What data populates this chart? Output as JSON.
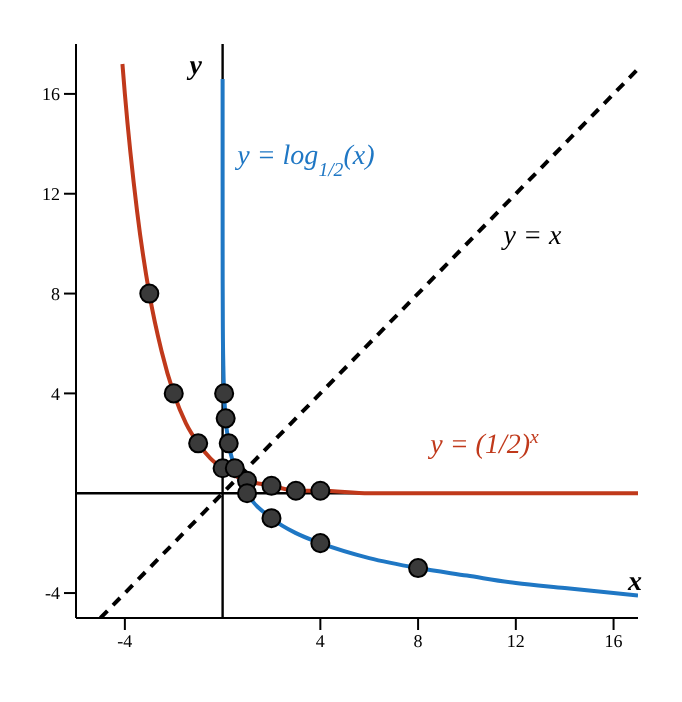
{
  "chart_data": {
    "type": "line",
    "xlabel": "x",
    "ylabel": "y",
    "xlim": [
      -6,
      17
    ],
    "ylim": [
      -5,
      18
    ],
    "xticks": [
      -4,
      4,
      8,
      12,
      16
    ],
    "yticks": [
      -4,
      4,
      8,
      12,
      16
    ],
    "grid": false,
    "legend": false,
    "marker": "none",
    "series": [
      {
        "name": "y = log$_{1/2}$(x)",
        "color": "#1f77c4",
        "line_style": "solid",
        "x": [
          1e-05,
          0.0002,
          0.001,
          0.003,
          0.01,
          0.03,
          0.0625,
          0.125,
          0.25,
          0.5,
          1,
          2,
          3,
          4,
          6,
          8,
          10,
          12,
          14,
          16,
          17
        ],
        "values": [
          16.6,
          12.3,
          10,
          8.4,
          6.6,
          5.1,
          4,
          3,
          2,
          1,
          0,
          -1,
          -1.6,
          -2,
          -2.6,
          -3,
          -3.3,
          -3.6,
          -3.8,
          -4,
          -4.1
        ]
      },
      {
        "name": "y = x",
        "color": "#000000",
        "line_style": "dashed",
        "x": [
          -5,
          17
        ],
        "values": [
          -5,
          17
        ]
      },
      {
        "name": "y = (1/2)$^{x}$",
        "color": "#c0391b",
        "line_style": "solid",
        "x": [
          -4.1,
          -4,
          -3.5,
          -3,
          -2.5,
          -2,
          -1.5,
          -1,
          -0.5,
          0,
          0.5,
          1,
          2,
          3,
          4,
          6,
          8,
          12,
          17
        ],
        "values": [
          17.2,
          16,
          11.3,
          8,
          5.7,
          4,
          2.8,
          2,
          1.4,
          1,
          0.7,
          0.5,
          0.3,
          0.1,
          0.1,
          0,
          0,
          0,
          0
        ]
      },
      {
        "type": "scatter",
        "color": "#3a3a3a",
        "marker": "circle",
        "x": [
          -3,
          -2,
          -1,
          0,
          1,
          2,
          3,
          4,
          8,
          4,
          2,
          1,
          0.5,
          0.25,
          0.125,
          0.0625
        ],
        "values": [
          8,
          4,
          2,
          1,
          0.5,
          0.3,
          0.1,
          0.1,
          -3,
          -2,
          -1,
          0,
          1,
          2,
          3,
          4
        ]
      }
    ]
  }
}
